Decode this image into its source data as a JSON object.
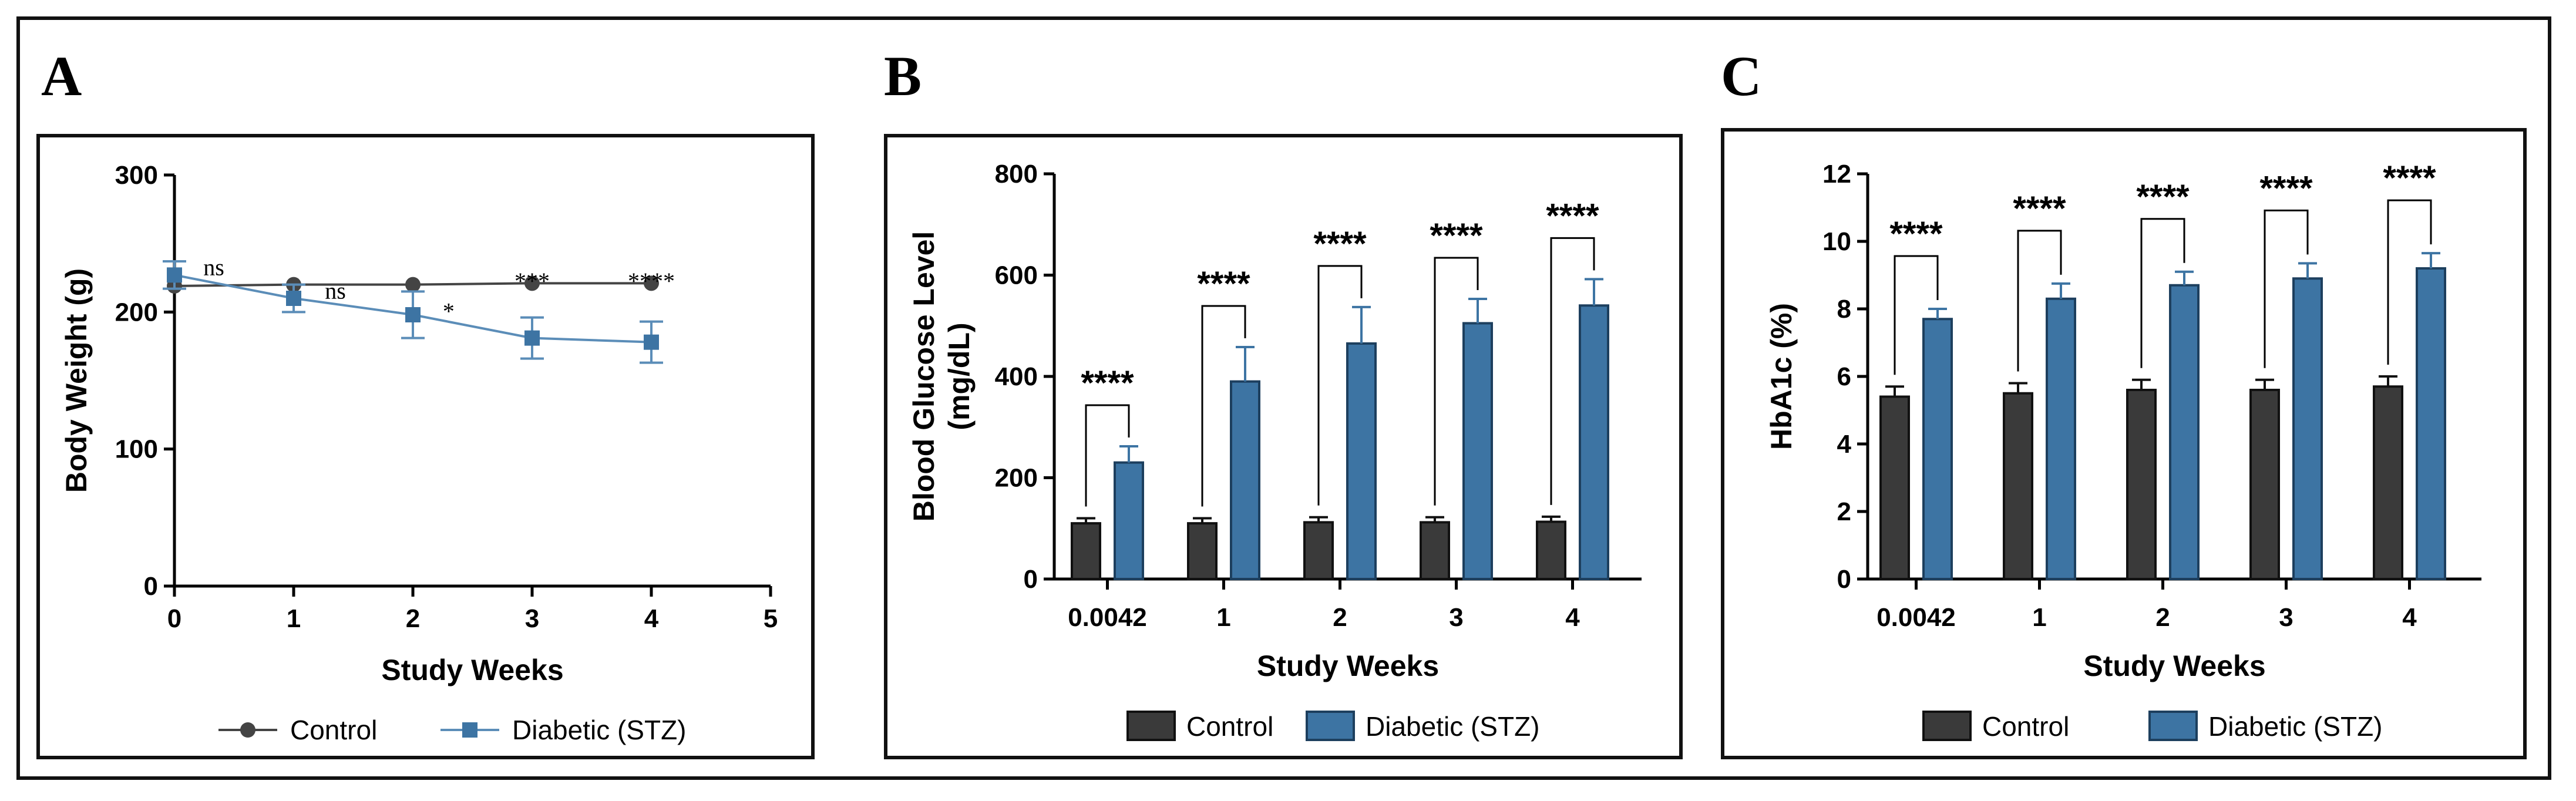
{
  "panels": [
    {
      "letter": "A"
    },
    {
      "letter": "B"
    },
    {
      "letter": "C"
    }
  ],
  "colors": {
    "control": "#444444",
    "diabetic": "#3d74a3",
    "diabetic_line": "#5b8db8",
    "frame": "#111111"
  },
  "chart_data": [
    {
      "type": "line",
      "panel": "A",
      "xlabel": "Study Weeks",
      "ylabel": "Body Weight (g)",
      "xlim": [
        0,
        5
      ],
      "ylim": [
        0,
        300
      ],
      "xticks": [
        "0",
        "1",
        "2",
        "3",
        "4",
        "5"
      ],
      "yticks": [
        "0",
        "100",
        "200",
        "300"
      ],
      "grid": false,
      "legend_position": "bottom",
      "series": [
        {
          "name": "Control",
          "marker": "circle",
          "x": [
            0,
            1,
            2,
            3,
            4
          ],
          "y": [
            219,
            220,
            220,
            221,
            221
          ],
          "err": [
            2,
            2,
            2,
            2,
            2
          ]
        },
        {
          "name": "Diabetic (STZ)",
          "marker": "square",
          "x": [
            0,
            1,
            2,
            3,
            4
          ],
          "y": [
            227,
            210,
            198,
            181,
            178
          ],
          "err": [
            10,
            10,
            17,
            15,
            15
          ]
        }
      ],
      "annotations": [
        "ns",
        "ns",
        "*",
        "***",
        "****"
      ]
    },
    {
      "type": "bar",
      "panel": "B",
      "xlabel": "Study Weeks",
      "ylabel": "Blood Glucose Level (mg/dL)",
      "ylabel_lines": [
        "Blood Glucose Level",
        "(mg/dL)"
      ],
      "ylim": [
        0,
        800
      ],
      "yticks": [
        "0",
        "200",
        "400",
        "600",
        "800"
      ],
      "categories": [
        "0.0042",
        "1",
        "2",
        "3",
        "4"
      ],
      "grid": false,
      "legend_position": "bottom",
      "series": [
        {
          "name": "Control",
          "values": [
            110,
            110,
            112,
            112,
            113
          ],
          "err": [
            10,
            10,
            10,
            10,
            10
          ]
        },
        {
          "name": "Diabetic (STZ)",
          "values": [
            230,
            390,
            465,
            505,
            540
          ],
          "err": [
            32,
            68,
            72,
            48,
            52
          ]
        }
      ],
      "annotations": [
        "****",
        "****",
        "****",
        "****",
        "****"
      ]
    },
    {
      "type": "bar",
      "panel": "C",
      "xlabel": "Study Weeks",
      "ylabel": "HbA1c (%)",
      "ylim": [
        0,
        12
      ],
      "yticks": [
        "0",
        "2",
        "4",
        "6",
        "8",
        "10",
        "12"
      ],
      "categories": [
        "0.0042",
        "1",
        "2",
        "3",
        "4"
      ],
      "grid": false,
      "legend_position": "bottom",
      "series": [
        {
          "name": "Control",
          "values": [
            5.4,
            5.5,
            5.6,
            5.6,
            5.7
          ],
          "err": [
            0.3,
            0.3,
            0.3,
            0.3,
            0.3
          ]
        },
        {
          "name": "Diabetic (STZ)",
          "values": [
            7.7,
            8.3,
            8.7,
            8.9,
            9.2
          ],
          "err": [
            0.3,
            0.45,
            0.4,
            0.45,
            0.45
          ]
        }
      ],
      "annotations": [
        "****",
        "****",
        "****",
        "****",
        "****"
      ]
    }
  ]
}
